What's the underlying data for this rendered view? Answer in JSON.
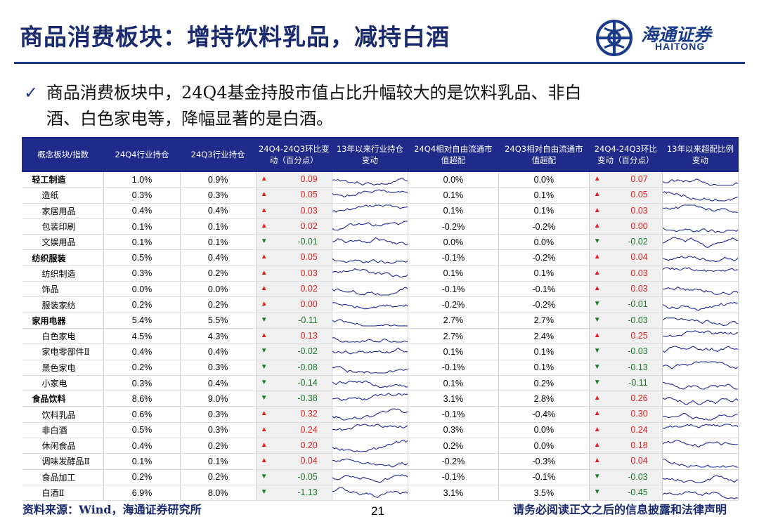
{
  "title": "商品消费板块：增持饮料乳品，减持白酒",
  "logo": {
    "cn": "海通证券",
    "en": "HAITONG"
  },
  "bullet": {
    "line1": "商品消费板块中，24Q4基金持股市值占比升幅较大的是饮料乳品、非白",
    "line2": "酒、白色家电等，降幅显著的是白酒。"
  },
  "table": {
    "headers": [
      "概念板块/指数",
      "24Q4行业持仓",
      "24Q3行业持仓",
      "24Q4-24Q3环比变动（百分点）",
      "13年以来行业持仓变动",
      "24Q4相对自由流通市值超配",
      "24Q3相对自由流通市值超配",
      "24Q4-24Q3环比变动（百分点）",
      "13年以来超配比例变动"
    ],
    "rows": [
      {
        "name": "轻工制造",
        "q4": "1.0%",
        "q3": "0.9%",
        "dir": "up",
        "chg": "0.09",
        "rq4": "0.0%",
        "rq3": "0.0%",
        "rdir": "up",
        "rchg": "0.07",
        "group": true
      },
      {
        "name": "造纸",
        "q4": "0.3%",
        "q3": "0.3%",
        "dir": "up",
        "chg": "0.05",
        "rq4": "0.1%",
        "rq3": "0.1%",
        "rdir": "up",
        "rchg": "0.05",
        "group": false
      },
      {
        "name": "家居用品",
        "q4": "0.4%",
        "q3": "0.4%",
        "dir": "up",
        "chg": "0.03",
        "rq4": "0.1%",
        "rq3": "0.1%",
        "rdir": "up",
        "rchg": "0.03",
        "group": false
      },
      {
        "name": "包装印刷",
        "q4": "0.1%",
        "q3": "0.1%",
        "dir": "up",
        "chg": "0.02",
        "rq4": "-0.2%",
        "rq3": "-0.2%",
        "rdir": "up",
        "rchg": "0.00",
        "group": false
      },
      {
        "name": "文娱用品",
        "q4": "0.1%",
        "q3": "0.1%",
        "dir": "down",
        "chg": "-0.01",
        "rq4": "0.0%",
        "rq3": "0.0%",
        "rdir": "down",
        "rchg": "-0.02",
        "group": false
      },
      {
        "name": "纺织服装",
        "q4": "0.5%",
        "q3": "0.4%",
        "dir": "up",
        "chg": "0.05",
        "rq4": "-0.1%",
        "rq3": "-0.2%",
        "rdir": "up",
        "rchg": "0.04",
        "group": true
      },
      {
        "name": "纺织制造",
        "q4": "0.3%",
        "q3": "0.2%",
        "dir": "up",
        "chg": "0.03",
        "rq4": "0.1%",
        "rq3": "0.1%",
        "rdir": "up",
        "rchg": "0.03",
        "group": false
      },
      {
        "name": "饰品",
        "q4": "0.0%",
        "q3": "0.0%",
        "dir": "up",
        "chg": "0.02",
        "rq4": "-0.1%",
        "rq3": "-0.1%",
        "rdir": "up",
        "rchg": "0.03",
        "group": false
      },
      {
        "name": "服装家纺",
        "q4": "0.2%",
        "q3": "0.2%",
        "dir": "up",
        "chg": "0.00",
        "rq4": "-0.2%",
        "rq3": "-0.2%",
        "rdir": "down",
        "rchg": "-0.01",
        "group": false
      },
      {
        "name": "家用电器",
        "q4": "5.4%",
        "q3": "5.5%",
        "dir": "down",
        "chg": "-0.11",
        "rq4": "2.7%",
        "rq3": "2.7%",
        "rdir": "down",
        "rchg": "-0.03",
        "group": true
      },
      {
        "name": "白色家电",
        "q4": "4.5%",
        "q3": "4.3%",
        "dir": "up",
        "chg": "0.13",
        "rq4": "2.7%",
        "rq3": "2.4%",
        "rdir": "up",
        "rchg": "0.25",
        "group": false
      },
      {
        "name": "家电零部件Ⅱ",
        "q4": "0.4%",
        "q3": "0.4%",
        "dir": "down",
        "chg": "-0.02",
        "rq4": "0.1%",
        "rq3": "0.1%",
        "rdir": "down",
        "rchg": "-0.03",
        "group": false
      },
      {
        "name": "黑色家电",
        "q4": "0.2%",
        "q3": "0.3%",
        "dir": "down",
        "chg": "-0.08",
        "rq4": "-0.1%",
        "rq3": "0.1%",
        "rdir": "down",
        "rchg": "-0.13",
        "group": false
      },
      {
        "name": "小家电",
        "q4": "0.3%",
        "q3": "0.4%",
        "dir": "down",
        "chg": "-0.14",
        "rq4": "0.1%",
        "rq3": "0.2%",
        "rdir": "down",
        "rchg": "-0.11",
        "group": false
      },
      {
        "name": "食品饮料",
        "q4": "8.6%",
        "q3": "9.0%",
        "dir": "down",
        "chg": "-0.38",
        "rq4": "3.1%",
        "rq3": "2.8%",
        "rdir": "up",
        "rchg": "0.26",
        "group": true
      },
      {
        "name": "饮料乳品",
        "q4": "0.6%",
        "q3": "0.3%",
        "dir": "up",
        "chg": "0.32",
        "rq4": "-0.1%",
        "rq3": "-0.4%",
        "rdir": "up",
        "rchg": "0.30",
        "group": false
      },
      {
        "name": "非白酒",
        "q4": "0.5%",
        "q3": "0.3%",
        "dir": "up",
        "chg": "0.24",
        "rq4": "0.3%",
        "rq3": "0.0%",
        "rdir": "up",
        "rchg": "0.24",
        "group": false
      },
      {
        "name": "休闲食品",
        "q4": "0.4%",
        "q3": "0.2%",
        "dir": "up",
        "chg": "0.20",
        "rq4": "0.2%",
        "rq3": "0.0%",
        "rdir": "up",
        "rchg": "0.18",
        "group": false
      },
      {
        "name": "调味发酵品Ⅱ",
        "q4": "0.1%",
        "q3": "0.1%",
        "dir": "up",
        "chg": "0.04",
        "rq4": "-0.2%",
        "rq3": "-0.3%",
        "rdir": "up",
        "rchg": "0.04",
        "group": false
      },
      {
        "name": "食品加工",
        "q4": "0.2%",
        "q3": "0.2%",
        "dir": "down",
        "chg": "-0.05",
        "rq4": "-0.1%",
        "rq3": "-0.1%",
        "rdir": "down",
        "rchg": "-0.03",
        "group": false
      },
      {
        "name": "白酒Ⅱ",
        "q4": "6.9%",
        "q3": "8.0%",
        "dir": "down",
        "chg": "-1.13",
        "rq4": "3.1%",
        "rq3": "3.5%",
        "rdir": "down",
        "rchg": "-0.45",
        "group": false
      }
    ]
  },
  "footer": {
    "source": "资料来源：Wind，海通证券研究所",
    "page": "21",
    "disclaimer": "请务必阅读正文之后的信息披露和法律声明"
  },
  "colors": {
    "navy": "#1f2a8a",
    "up": "#e02020",
    "down": "#1a7a2a"
  }
}
